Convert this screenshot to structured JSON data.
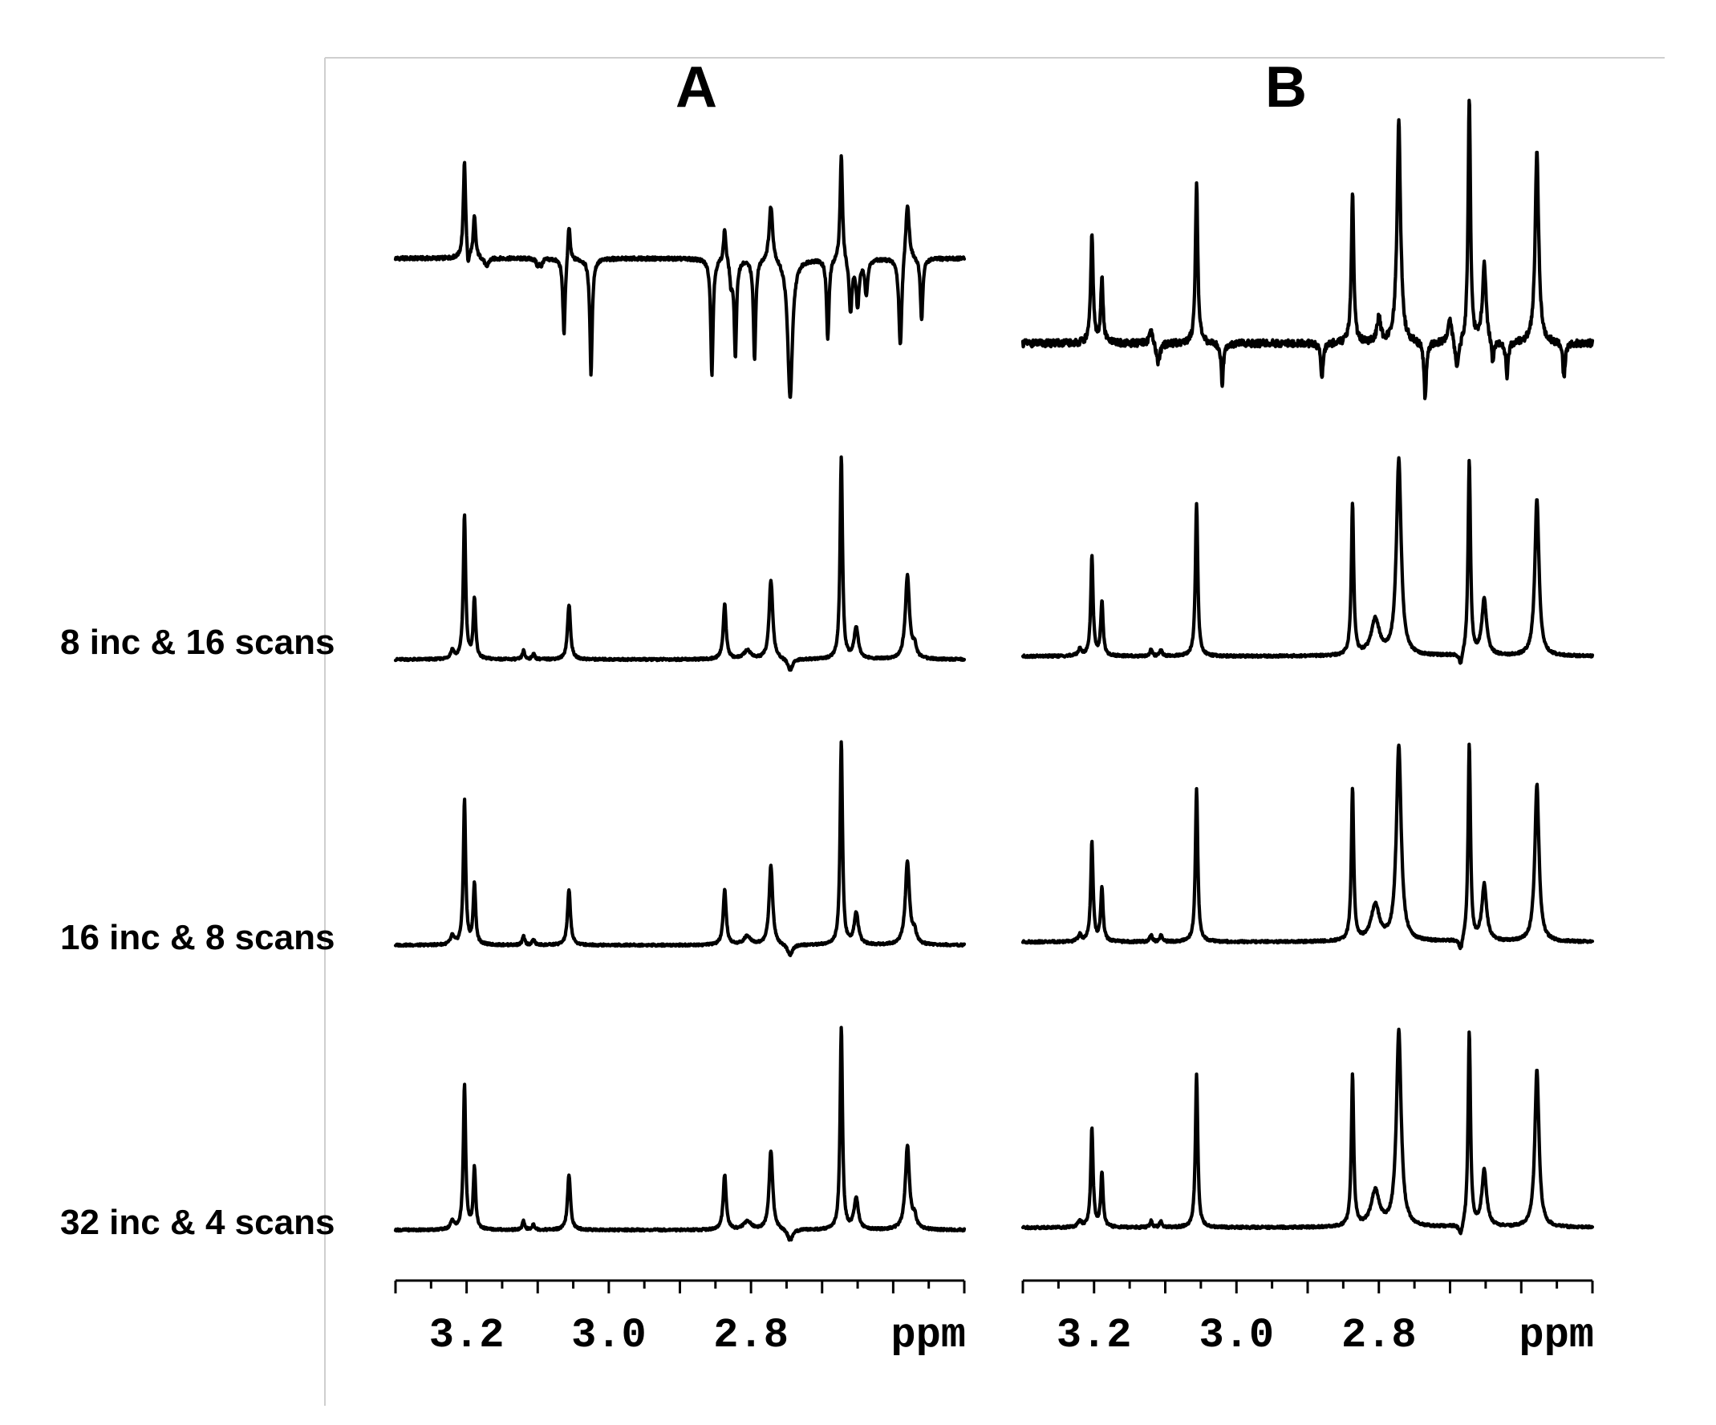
{
  "chart_data": {
    "type": "line",
    "x_unit": "ppm",
    "x_axis_reversed": true,
    "xlim": [
      3.3,
      2.5
    ],
    "x_ticks": [
      3.2,
      3.0,
      2.8
    ],
    "x_tick_labels": [
      "3.2",
      "3.0",
      "2.8"
    ],
    "x_axis_unit_label": "ppm",
    "row_labels": [
      "",
      "8 inc & 16 scans",
      "16 inc & 8 scans",
      "32 inc & 4 scans"
    ],
    "panels": [
      {
        "label": "A",
        "traces": [
          {
            "row": 0,
            "baseline": 0,
            "peaks": [
              {
                "ppm": 3.203,
                "height": 1.0,
                "width": 0.002
              },
              {
                "ppm": 3.189,
                "height": 0.42,
                "width": 0.002
              },
              {
                "ppm": 3.198,
                "height": -0.18,
                "width": 0.0015
              },
              {
                "ppm": 3.172,
                "height": -0.1,
                "width": 0.003
              },
              {
                "ppm": 3.1,
                "height": -0.08,
                "width": 0.002
              },
              {
                "ppm": 3.095,
                "height": -0.07,
                "width": 0.002
              },
              {
                "ppm": 3.063,
                "height": -0.8,
                "width": 0.002
              },
              {
                "ppm": 3.056,
                "height": 0.38,
                "width": 0.002
              },
              {
                "ppm": 3.025,
                "height": -1.2,
                "width": 0.002
              },
              {
                "ppm": 2.855,
                "height": -1.2,
                "width": 0.002
              },
              {
                "ppm": 2.837,
                "height": 0.35,
                "width": 0.002
              },
              {
                "ppm": 2.828,
                "height": -0.25,
                "width": 0.002
              },
              {
                "ppm": 2.822,
                "height": -1.0,
                "width": 0.002
              },
              {
                "ppm": 2.795,
                "height": -1.05,
                "width": 0.002
              },
              {
                "ppm": 2.772,
                "height": 0.58,
                "width": 0.003
              },
              {
                "ppm": 2.745,
                "height": -1.45,
                "width": 0.004
              },
              {
                "ppm": 2.692,
                "height": -0.85,
                "width": 0.002
              },
              {
                "ppm": 2.673,
                "height": 1.1,
                "width": 0.002
              },
              {
                "ppm": 2.66,
                "height": -0.55,
                "width": 0.0025
              },
              {
                "ppm": 2.65,
                "height": -0.48,
                "width": 0.0025
              },
              {
                "ppm": 2.638,
                "height": -0.35,
                "width": 0.0025
              },
              {
                "ppm": 2.59,
                "height": -0.95,
                "width": 0.0025
              },
              {
                "ppm": 2.58,
                "height": 0.62,
                "width": 0.003
              },
              {
                "ppm": 2.56,
                "height": -0.65,
                "width": 0.002
              }
            ]
          },
          {
            "row": 1,
            "baseline": 0,
            "peaks": [
              {
                "ppm": 3.22,
                "height": 0.06,
                "width": 0.003
              },
              {
                "ppm": 3.203,
                "height": 1.0,
                "width": 0.002
              },
              {
                "ppm": 3.189,
                "height": 0.42,
                "width": 0.002
              },
              {
                "ppm": 3.12,
                "height": 0.06,
                "width": 0.002
              },
              {
                "ppm": 3.106,
                "height": 0.04,
                "width": 0.002
              },
              {
                "ppm": 3.056,
                "height": 0.38,
                "width": 0.0025
              },
              {
                "ppm": 2.837,
                "height": 0.38,
                "width": 0.0025
              },
              {
                "ppm": 2.805,
                "height": 0.06,
                "width": 0.006
              },
              {
                "ppm": 2.772,
                "height": 0.55,
                "width": 0.003
              },
              {
                "ppm": 2.745,
                "height": -0.08,
                "width": 0.004
              },
              {
                "ppm": 2.673,
                "height": 1.4,
                "width": 0.002
              },
              {
                "ppm": 2.652,
                "height": 0.22,
                "width": 0.0035
              },
              {
                "ppm": 2.58,
                "height": 0.58,
                "width": 0.0035
              },
              {
                "ppm": 2.57,
                "height": 0.08,
                "width": 0.003
              }
            ]
          },
          {
            "row": 2,
            "baseline": 0,
            "peaks": [
              {
                "ppm": 3.22,
                "height": 0.06,
                "width": 0.003
              },
              {
                "ppm": 3.203,
                "height": 1.0,
                "width": 0.002
              },
              {
                "ppm": 3.189,
                "height": 0.42,
                "width": 0.002
              },
              {
                "ppm": 3.12,
                "height": 0.06,
                "width": 0.002
              },
              {
                "ppm": 3.106,
                "height": 0.04,
                "width": 0.002
              },
              {
                "ppm": 3.056,
                "height": 0.38,
                "width": 0.0025
              },
              {
                "ppm": 2.837,
                "height": 0.38,
                "width": 0.0025
              },
              {
                "ppm": 2.805,
                "height": 0.06,
                "width": 0.006
              },
              {
                "ppm": 2.772,
                "height": 0.55,
                "width": 0.003
              },
              {
                "ppm": 2.745,
                "height": -0.08,
                "width": 0.004
              },
              {
                "ppm": 2.673,
                "height": 1.4,
                "width": 0.002
              },
              {
                "ppm": 2.652,
                "height": 0.22,
                "width": 0.0035
              },
              {
                "ppm": 2.58,
                "height": 0.58,
                "width": 0.0035
              },
              {
                "ppm": 2.57,
                "height": 0.08,
                "width": 0.003
              }
            ]
          },
          {
            "row": 3,
            "baseline": 0,
            "peaks": [
              {
                "ppm": 3.22,
                "height": 0.06,
                "width": 0.003
              },
              {
                "ppm": 3.203,
                "height": 1.0,
                "width": 0.002
              },
              {
                "ppm": 3.189,
                "height": 0.42,
                "width": 0.002
              },
              {
                "ppm": 3.12,
                "height": 0.06,
                "width": 0.002
              },
              {
                "ppm": 3.106,
                "height": 0.04,
                "width": 0.002
              },
              {
                "ppm": 3.056,
                "height": 0.38,
                "width": 0.0025
              },
              {
                "ppm": 2.837,
                "height": 0.38,
                "width": 0.0025
              },
              {
                "ppm": 2.805,
                "height": 0.06,
                "width": 0.006
              },
              {
                "ppm": 2.772,
                "height": 0.55,
                "width": 0.003
              },
              {
                "ppm": 2.745,
                "height": -0.08,
                "width": 0.004
              },
              {
                "ppm": 2.673,
                "height": 1.4,
                "width": 0.002
              },
              {
                "ppm": 2.652,
                "height": 0.22,
                "width": 0.0035
              },
              {
                "ppm": 2.58,
                "height": 0.58,
                "width": 0.0035
              },
              {
                "ppm": 2.57,
                "height": 0.08,
                "width": 0.003
              }
            ]
          }
        ]
      },
      {
        "label": "B",
        "traces": [
          {
            "row": 0,
            "baseline": 0,
            "peaks": [
              {
                "ppm": 3.203,
                "height": 0.55,
                "width": 0.002
              },
              {
                "ppm": 3.189,
                "height": 0.32,
                "width": 0.002
              },
              {
                "ppm": 3.12,
                "height": 0.06,
                "width": 0.003
              },
              {
                "ppm": 3.11,
                "height": -0.1,
                "width": 0.003
              },
              {
                "ppm": 3.056,
                "height": 0.8,
                "width": 0.002
              },
              {
                "ppm": 3.02,
                "height": -0.2,
                "width": 0.002
              },
              {
                "ppm": 2.88,
                "height": -0.18,
                "width": 0.002
              },
              {
                "ppm": 2.837,
                "height": 0.76,
                "width": 0.002
              },
              {
                "ppm": 2.8,
                "height": 0.12,
                "width": 0.003
              },
              {
                "ppm": 2.772,
                "height": 1.1,
                "width": 0.003
              },
              {
                "ppm": 2.735,
                "height": -0.28,
                "width": 0.002
              },
              {
                "ppm": 2.7,
                "height": 0.12,
                "width": 0.003
              },
              {
                "ppm": 2.69,
                "height": -0.15,
                "width": 0.003
              },
              {
                "ppm": 2.673,
                "height": 1.22,
                "width": 0.002
              },
              {
                "ppm": 2.652,
                "height": 0.4,
                "width": 0.003
              },
              {
                "ppm": 2.64,
                "height": -0.12,
                "width": 0.002
              },
              {
                "ppm": 2.62,
                "height": -0.18,
                "width": 0.002
              },
              {
                "ppm": 2.578,
                "height": 0.95,
                "width": 0.003
              },
              {
                "ppm": 2.54,
                "height": -0.18,
                "width": 0.002
              }
            ]
          },
          {
            "row": 1,
            "baseline": 0,
            "peaks": [
              {
                "ppm": 3.22,
                "height": 0.04,
                "width": 0.003
              },
              {
                "ppm": 3.203,
                "height": 0.62,
                "width": 0.002
              },
              {
                "ppm": 3.189,
                "height": 0.34,
                "width": 0.002
              },
              {
                "ppm": 3.12,
                "height": 0.04,
                "width": 0.002
              },
              {
                "ppm": 3.106,
                "height": 0.04,
                "width": 0.002
              },
              {
                "ppm": 3.056,
                "height": 0.95,
                "width": 0.002
              },
              {
                "ppm": 2.837,
                "height": 0.95,
                "width": 0.002
              },
              {
                "ppm": 2.805,
                "height": 0.22,
                "width": 0.007
              },
              {
                "ppm": 2.772,
                "height": 1.22,
                "width": 0.004
              },
              {
                "ppm": 2.685,
                "height": -0.08,
                "width": 0.003
              },
              {
                "ppm": 2.673,
                "height": 1.22,
                "width": 0.002
              },
              {
                "ppm": 2.652,
                "height": 0.35,
                "width": 0.004
              },
              {
                "ppm": 2.578,
                "height": 0.98,
                "width": 0.0035
              }
            ]
          },
          {
            "row": 2,
            "baseline": 0,
            "peaks": [
              {
                "ppm": 3.22,
                "height": 0.04,
                "width": 0.003
              },
              {
                "ppm": 3.203,
                "height": 0.62,
                "width": 0.002
              },
              {
                "ppm": 3.189,
                "height": 0.34,
                "width": 0.002
              },
              {
                "ppm": 3.12,
                "height": 0.04,
                "width": 0.002
              },
              {
                "ppm": 3.106,
                "height": 0.04,
                "width": 0.002
              },
              {
                "ppm": 3.056,
                "height": 0.95,
                "width": 0.002
              },
              {
                "ppm": 2.837,
                "height": 0.95,
                "width": 0.002
              },
              {
                "ppm": 2.805,
                "height": 0.22,
                "width": 0.007
              },
              {
                "ppm": 2.772,
                "height": 1.22,
                "width": 0.004
              },
              {
                "ppm": 2.685,
                "height": -0.08,
                "width": 0.003
              },
              {
                "ppm": 2.673,
                "height": 1.22,
                "width": 0.002
              },
              {
                "ppm": 2.652,
                "height": 0.35,
                "width": 0.004
              },
              {
                "ppm": 2.578,
                "height": 0.98,
                "width": 0.0035
              }
            ]
          },
          {
            "row": 3,
            "baseline": 0,
            "peaks": [
              {
                "ppm": 3.22,
                "height": 0.04,
                "width": 0.003
              },
              {
                "ppm": 3.203,
                "height": 0.62,
                "width": 0.002
              },
              {
                "ppm": 3.189,
                "height": 0.34,
                "width": 0.002
              },
              {
                "ppm": 3.12,
                "height": 0.04,
                "width": 0.002
              },
              {
                "ppm": 3.106,
                "height": 0.04,
                "width": 0.002
              },
              {
                "ppm": 3.056,
                "height": 0.95,
                "width": 0.002
              },
              {
                "ppm": 2.837,
                "height": 0.95,
                "width": 0.002
              },
              {
                "ppm": 2.805,
                "height": 0.22,
                "width": 0.007
              },
              {
                "ppm": 2.772,
                "height": 1.22,
                "width": 0.004
              },
              {
                "ppm": 2.685,
                "height": -0.08,
                "width": 0.003
              },
              {
                "ppm": 2.673,
                "height": 1.22,
                "width": 0.002
              },
              {
                "ppm": 2.652,
                "height": 0.35,
                "width": 0.004
              },
              {
                "ppm": 2.578,
                "height": 0.98,
                "width": 0.0035
              }
            ]
          }
        ]
      }
    ]
  }
}
